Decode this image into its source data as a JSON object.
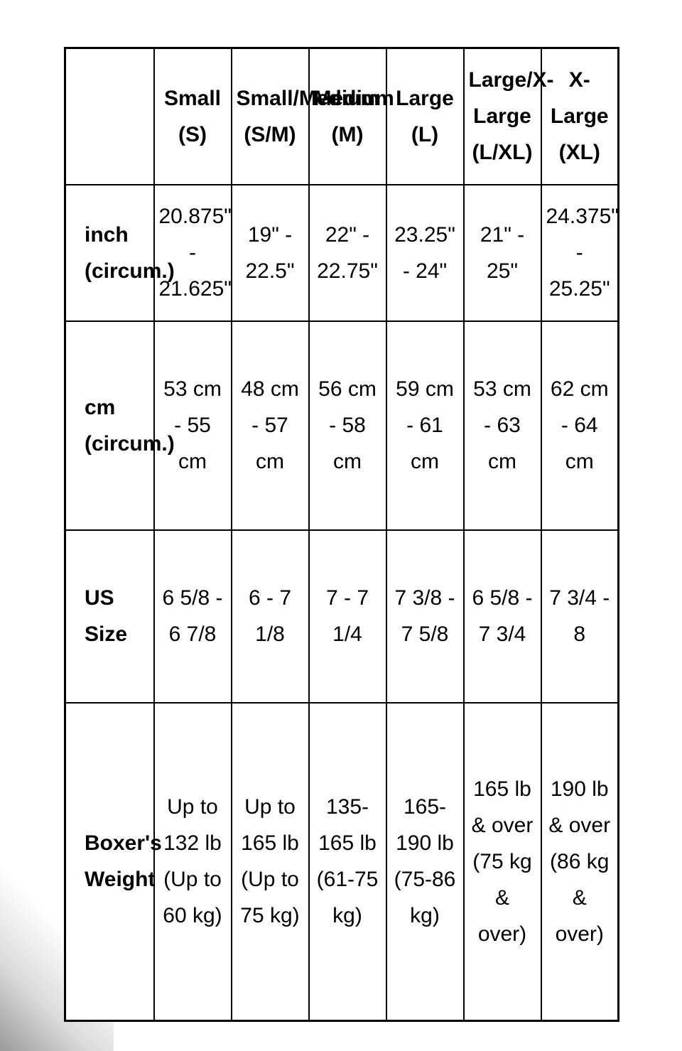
{
  "table": {
    "columns": [
      "Small (S)",
      "Small/Medium (S/M)",
      "Medium (M)",
      "Large (L)",
      "Large/X-Large (L/XL)",
      "X-Large (XL)"
    ],
    "rows": [
      {
        "label": "inch (circum.)",
        "cells": [
          "20.875\" - 21.625\"",
          "19\" - 22.5\"",
          "22\" - 22.75\"",
          "23.25\" - 24\"",
          "21\" - 25\"",
          "24.375\" - 25.25\""
        ]
      },
      {
        "label": "cm (circum.)",
        "cells": [
          "53 cm - 55 cm",
          "48 cm - 57 cm",
          "56 cm - 58 cm",
          "59 cm - 61 cm",
          "53 cm - 63 cm",
          "62 cm - 64 cm"
        ]
      },
      {
        "label": "US Size",
        "cells": [
          "6 5/8 - 6 7/8",
          "6 - 7 1/8",
          "7 - 7 1/4",
          "7 3/8 - 7 5/8",
          "6 5/8 - 7 3/4",
          "7 3/4 - 8"
        ]
      },
      {
        "label": "Boxer's Weight",
        "cells": [
          "Up to 132 lb (Up to 60 kg)",
          "Up to 165 lb (Up to 75 kg)",
          "135-165 lb (61-75 kg)",
          "165-190 lb (75-86 kg)",
          "165 lb & over (75 kg & over)",
          "190 lb & over (86 kg & over)"
        ]
      }
    ]
  }
}
